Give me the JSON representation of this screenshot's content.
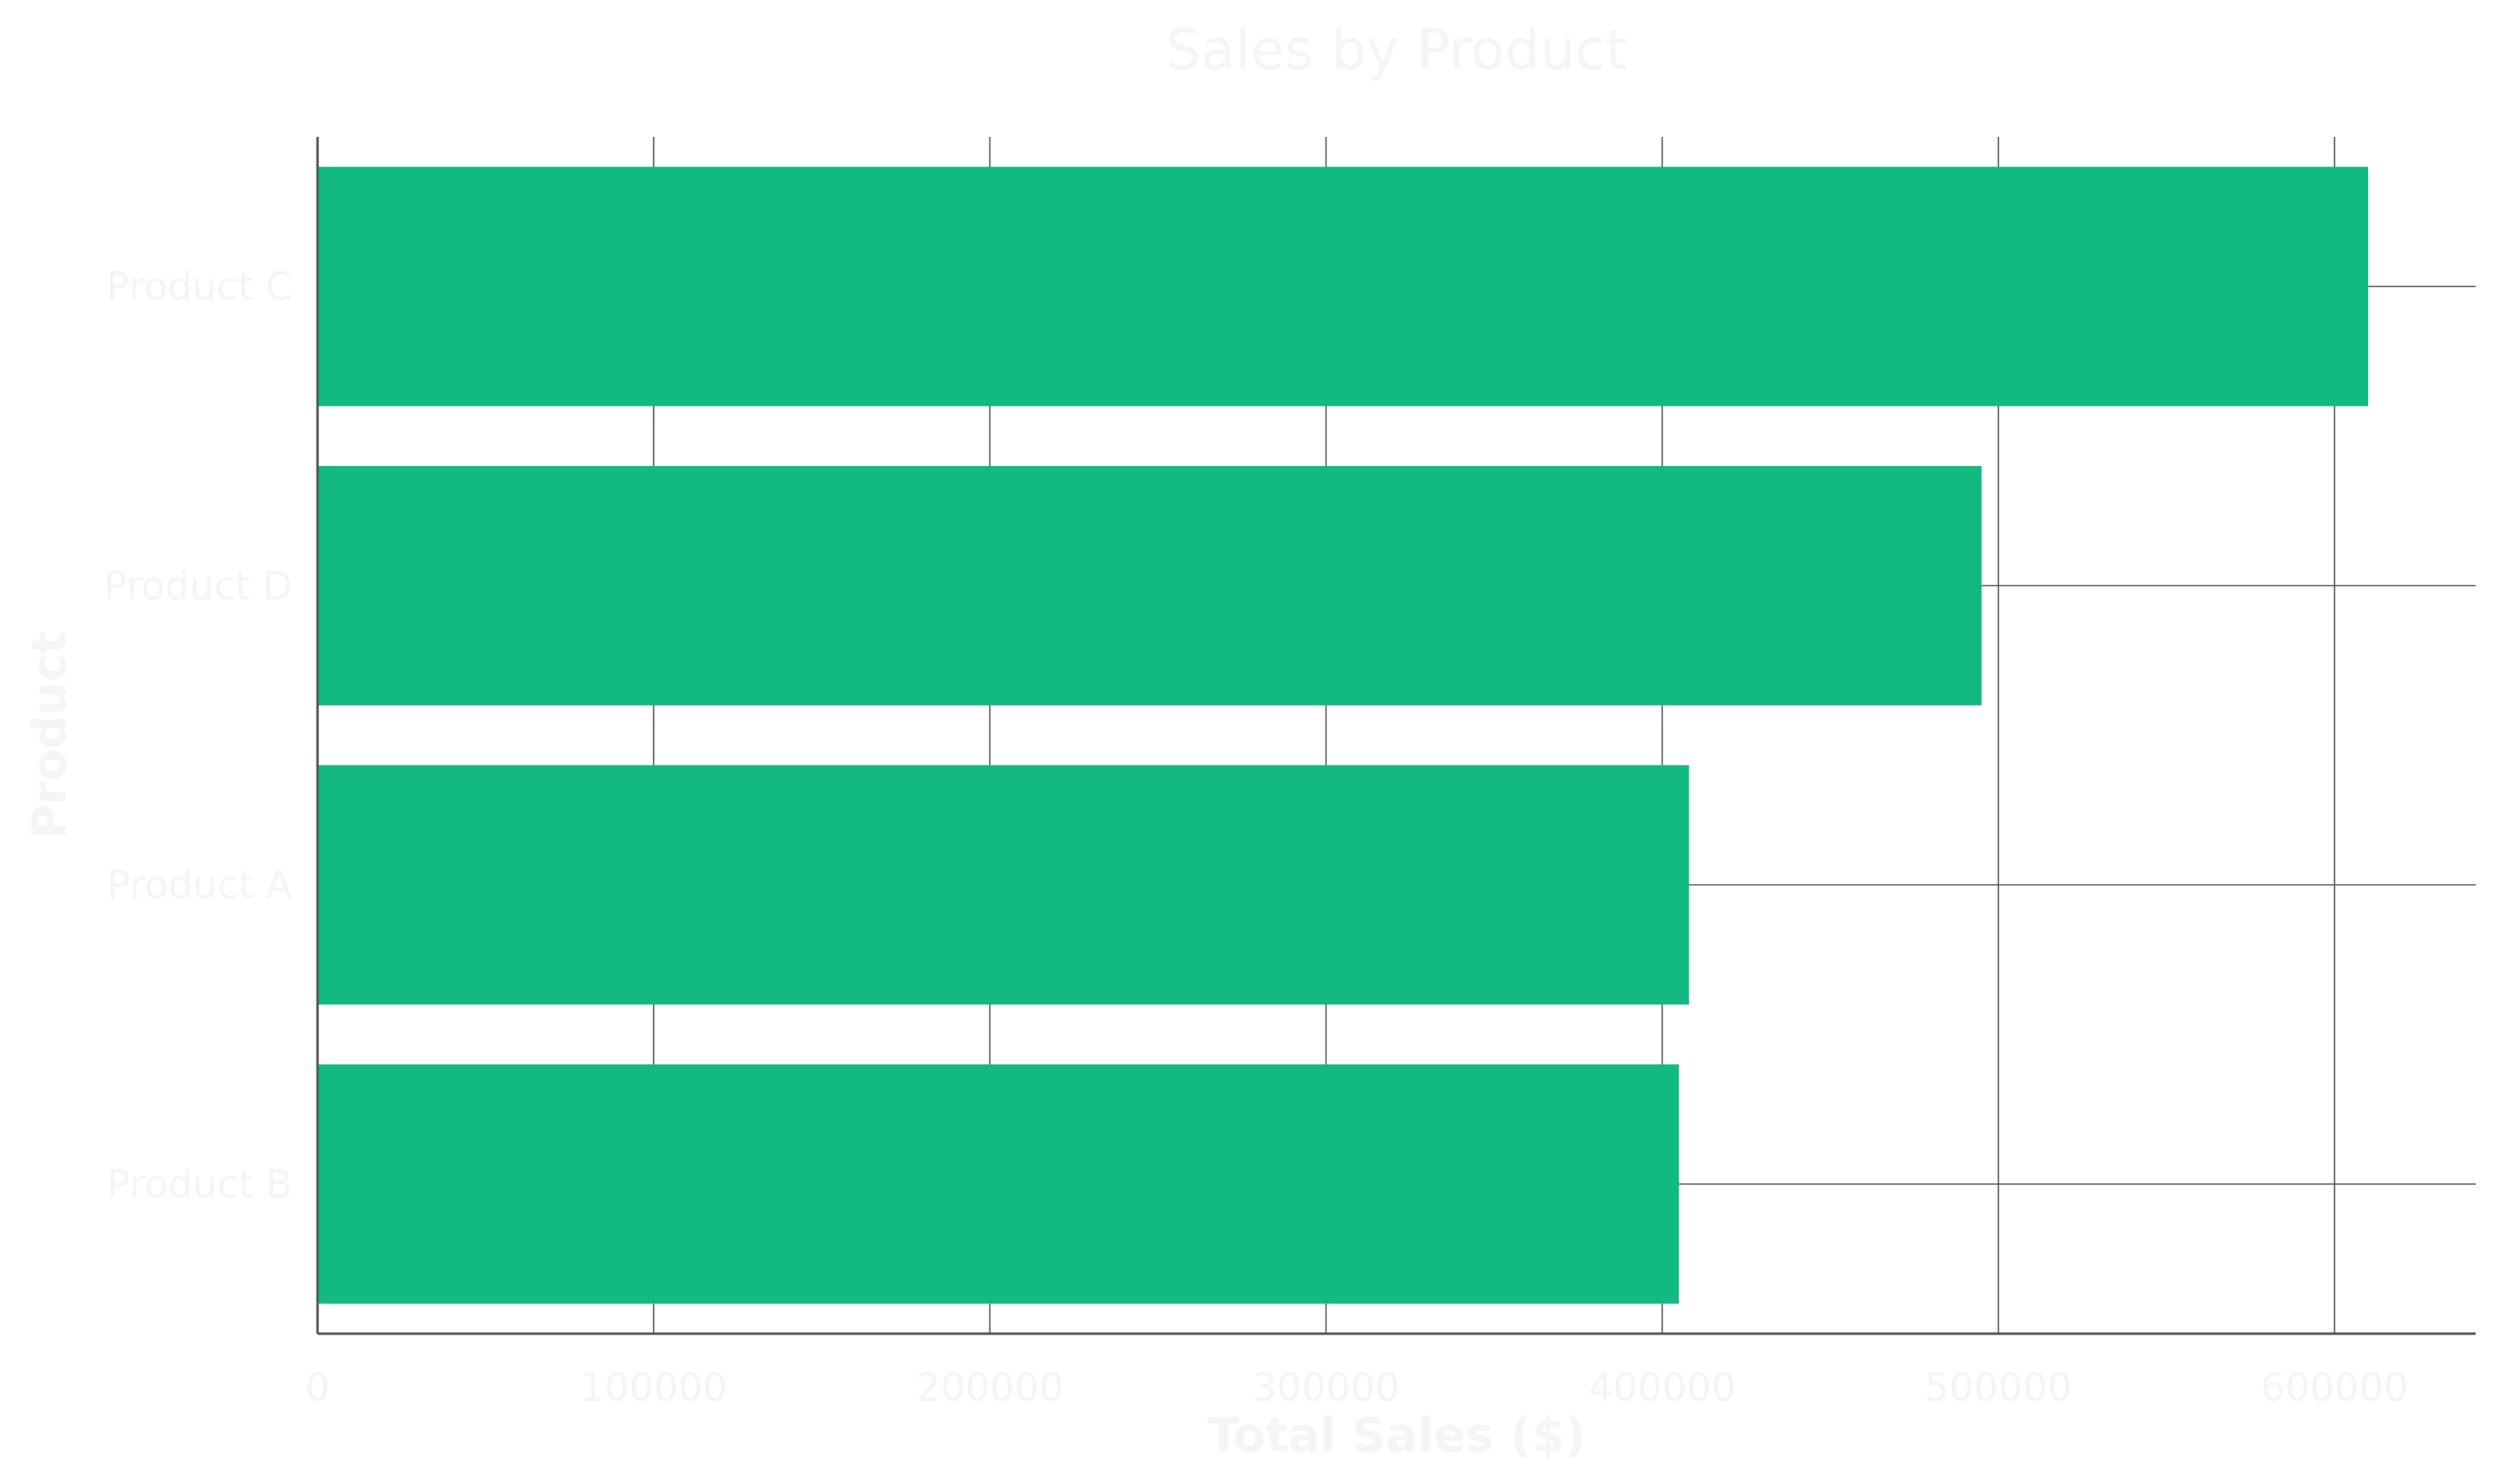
{
  "chart_data": {
    "type": "bar",
    "orientation": "horizontal",
    "title": "Sales by Product",
    "xlabel": "Total Sales ($)",
    "ylabel": "Product",
    "categories": [
      "Product C",
      "Product D",
      "Product A",
      "Product B"
    ],
    "values": [
      610000,
      495000,
      408000,
      405000
    ],
    "xlim": [
      0,
      642000
    ],
    "x_ticks": [
      "0",
      "100000",
      "200000",
      "300000",
      "400000",
      "500000",
      "600000"
    ],
    "x_tick_values": [
      0,
      100000,
      200000,
      300000,
      400000,
      500000,
      600000
    ],
    "grid": true,
    "bar_color": "#12b981",
    "grid_color": "#555555",
    "text_color": "#f5f5f5"
  }
}
